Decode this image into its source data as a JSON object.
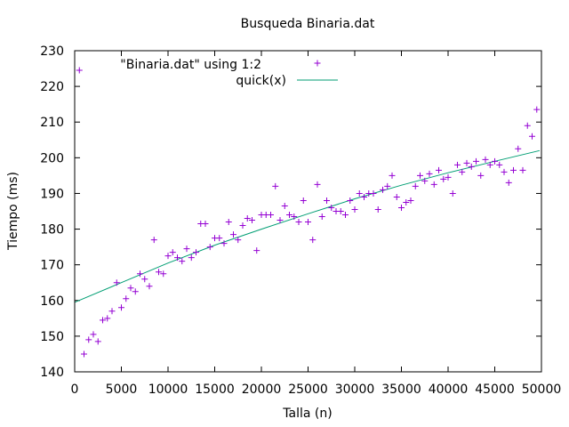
{
  "chart_data": {
    "type": "scatter",
    "title": "Busqueda Binaria.dat",
    "xlabel": "Talla (n)",
    "ylabel": "Tiempo (ms)",
    "xlim": [
      0,
      50000
    ],
    "ylim": [
      140,
      230
    ],
    "x_ticks": [
      0,
      5000,
      10000,
      15000,
      20000,
      25000,
      30000,
      35000,
      40000,
      45000,
      50000
    ],
    "y_ticks": [
      140,
      150,
      160,
      170,
      180,
      190,
      200,
      210,
      220,
      230
    ],
    "grid": false,
    "legend_position": "top-center",
    "series": [
      {
        "name": "\"Binaria.dat\" using 1:2",
        "kind": "points",
        "marker": "plus",
        "color": "#9400d3",
        "points": [
          [
            500,
            224.5
          ],
          [
            1000,
            145
          ],
          [
            1500,
            149
          ],
          [
            2000,
            150.5
          ],
          [
            2500,
            148.5
          ],
          [
            3000,
            154.5
          ],
          [
            3500,
            155
          ],
          [
            4000,
            157
          ],
          [
            4500,
            165
          ],
          [
            5000,
            158
          ],
          [
            5500,
            160.5
          ],
          [
            6000,
            163.5
          ],
          [
            6500,
            162.5
          ],
          [
            7000,
            167.5
          ],
          [
            7500,
            166
          ],
          [
            8000,
            164
          ],
          [
            8500,
            177
          ],
          [
            9000,
            168
          ],
          [
            9500,
            167.5
          ],
          [
            10000,
            172.5
          ],
          [
            10500,
            173.5
          ],
          [
            11000,
            172
          ],
          [
            11500,
            171
          ],
          [
            12000,
            174.5
          ],
          [
            12500,
            172
          ],
          [
            13000,
            173.5
          ],
          [
            13500,
            181.5
          ],
          [
            14000,
            181.5
          ],
          [
            14500,
            175
          ],
          [
            15000,
            177.5
          ],
          [
            15500,
            177.5
          ],
          [
            16000,
            176
          ],
          [
            16500,
            182
          ],
          [
            17000,
            178.5
          ],
          [
            17500,
            177
          ],
          [
            18000,
            181
          ],
          [
            18500,
            183
          ],
          [
            19000,
            182.5
          ],
          [
            19500,
            174
          ],
          [
            20000,
            184
          ],
          [
            20500,
            184
          ],
          [
            21000,
            184
          ],
          [
            21500,
            192
          ],
          [
            22000,
            182.5
          ],
          [
            22500,
            186.5
          ],
          [
            23000,
            184
          ],
          [
            23500,
            183.5
          ],
          [
            24000,
            182
          ],
          [
            24500,
            188
          ],
          [
            25000,
            182
          ],
          [
            25500,
            177
          ],
          [
            26000,
            192.5
          ],
          [
            26500,
            183.5
          ],
          [
            27000,
            188
          ],
          [
            27500,
            186
          ],
          [
            28000,
            185
          ],
          [
            28500,
            185
          ],
          [
            29000,
            184
          ],
          [
            29500,
            188
          ],
          [
            30000,
            185.5
          ],
          [
            30500,
            190
          ],
          [
            31000,
            189
          ],
          [
            31500,
            190
          ],
          [
            32000,
            190
          ],
          [
            32500,
            185.5
          ],
          [
            33000,
            191
          ],
          [
            33500,
            192
          ],
          [
            34000,
            195
          ],
          [
            34500,
            189
          ],
          [
            35000,
            186
          ],
          [
            35500,
            187.5
          ],
          [
            36000,
            188
          ],
          [
            36500,
            192
          ],
          [
            37000,
            195
          ],
          [
            37500,
            193.5
          ],
          [
            38000,
            195.5
          ],
          [
            38500,
            192.5
          ],
          [
            39000,
            196.5
          ],
          [
            39500,
            194
          ],
          [
            40000,
            194.5
          ],
          [
            40500,
            190
          ],
          [
            41000,
            198
          ],
          [
            41500,
            196
          ],
          [
            42000,
            198.5
          ],
          [
            42500,
            197.5
          ],
          [
            43000,
            199
          ],
          [
            43500,
            195
          ],
          [
            44000,
            199.5
          ],
          [
            44500,
            198
          ],
          [
            45000,
            199
          ],
          [
            45500,
            198
          ],
          [
            46000,
            196
          ],
          [
            46500,
            193
          ],
          [
            47000,
            196.5
          ],
          [
            47500,
            202.5
          ],
          [
            48000,
            196.5
          ],
          [
            48500,
            209
          ],
          [
            49000,
            206
          ],
          [
            49500,
            213.5
          ]
        ]
      },
      {
        "name": "quick(x)",
        "kind": "line",
        "color": "#009e73",
        "points": [
          [
            0,
            159.5
          ],
          [
            5000,
            165
          ],
          [
            10000,
            170.5
          ],
          [
            15000,
            175.5
          ],
          [
            20000,
            180
          ],
          [
            25000,
            184.3
          ],
          [
            30000,
            188.5
          ],
          [
            35000,
            192.3
          ],
          [
            40000,
            195.8
          ],
          [
            45000,
            199
          ],
          [
            49800,
            202
          ]
        ]
      }
    ]
  }
}
